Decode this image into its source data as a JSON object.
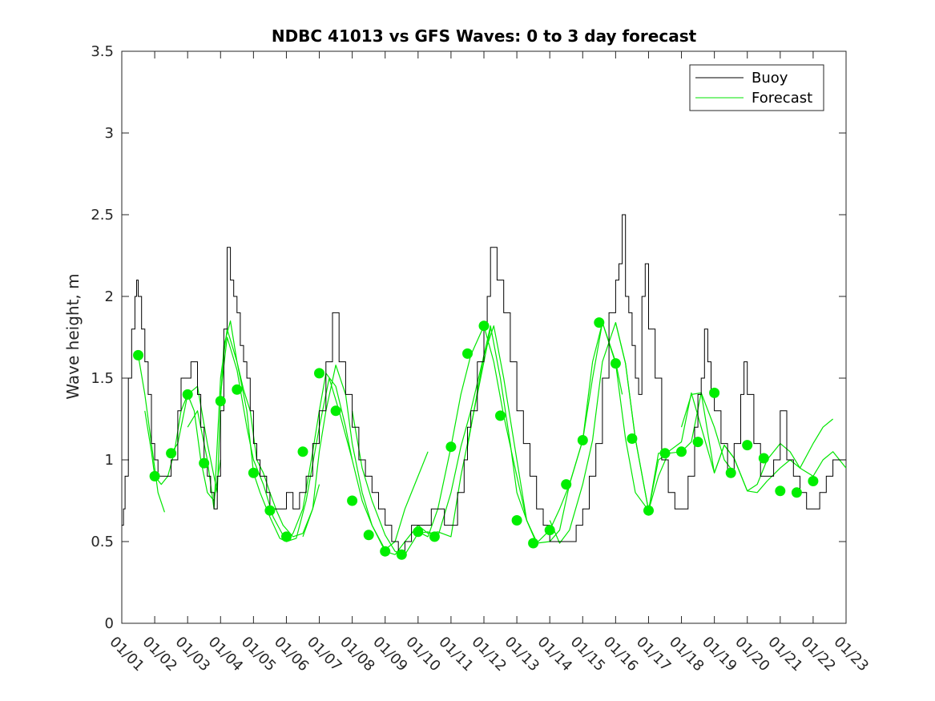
{
  "chart_data": {
    "type": "line",
    "title": "NDBC 41013 vs GFS Waves: 0 to 3 day forecast",
    "xlabel": "",
    "ylabel": "Wave height, m",
    "xlim": [
      0,
      22
    ],
    "ylim": [
      0,
      3.5
    ],
    "yticks": [
      0,
      0.5,
      1,
      1.5,
      2,
      2.5,
      3,
      3.5
    ],
    "ytick_labels": [
      "0",
      "0.5",
      "1",
      "1.5",
      "2",
      "2.5",
      "3",
      "3.5"
    ],
    "xticks": [
      0,
      1,
      2,
      3,
      4,
      5,
      6,
      7,
      8,
      9,
      10,
      11,
      12,
      13,
      14,
      15,
      16,
      17,
      18,
      19,
      20,
      21,
      22
    ],
    "xtick_labels": [
      "01/01",
      "01/02",
      "01/03",
      "01/04",
      "01/05",
      "01/06",
      "01/07",
      "01/08",
      "01/09",
      "01/10",
      "01/11",
      "01/12",
      "01/13",
      "01/14",
      "01/15",
      "01/16",
      "01/17",
      "01/18",
      "01/19",
      "01/20",
      "01/21",
      "01/22",
      "01/23"
    ],
    "legend": {
      "position": "top-right",
      "entries": [
        "Buoy",
        "Forecast"
      ]
    },
    "colors": {
      "buoy": "#000000",
      "forecast": "#00e600",
      "analysis_dot": "#00ee00"
    },
    "series": [
      {
        "name": "Buoy",
        "x": [
          0,
          0.05,
          0.1,
          0.2,
          0.3,
          0.4,
          0.45,
          0.5,
          0.55,
          0.6,
          0.7,
          0.8,
          0.9,
          1.0,
          1.1,
          1.2,
          1.3,
          1.5,
          1.7,
          1.8,
          2.0,
          2.1,
          2.2,
          2.3,
          2.4,
          2.5,
          2.6,
          2.7,
          2.8,
          2.9,
          3.0,
          3.1,
          3.2,
          3.3,
          3.4,
          3.5,
          3.6,
          3.7,
          3.8,
          3.9,
          4.0,
          4.1,
          4.2,
          4.3,
          4.4,
          4.5,
          4.6,
          4.8,
          5.0,
          5.2,
          5.4,
          5.6,
          5.8,
          6.0,
          6.2,
          6.4,
          6.6,
          6.8,
          7.0,
          7.2,
          7.4,
          7.6,
          7.8,
          8.0,
          8.2,
          8.4,
          8.6,
          8.8,
          9.0,
          9.2,
          9.4,
          9.6,
          9.8,
          10.0,
          10.2,
          10.4,
          10.5,
          10.6,
          10.8,
          11.0,
          11.1,
          11.2,
          11.4,
          11.6,
          11.8,
          12.0,
          12.2,
          12.4,
          12.6,
          12.8,
          13.0,
          13.2,
          13.4,
          13.6,
          13.8,
          14.0,
          14.2,
          14.4,
          14.6,
          14.8,
          15.0,
          15.1,
          15.2,
          15.3,
          15.4,
          15.5,
          15.6,
          15.7,
          15.8,
          15.9,
          16.0,
          16.2,
          16.4,
          16.6,
          16.8,
          17.0,
          17.2,
          17.4,
          17.5,
          17.6,
          17.7,
          17.8,
          17.9,
          18.0,
          18.2,
          18.4,
          18.6,
          18.8,
          18.9,
          19.0,
          19.2,
          19.4,
          19.6,
          19.8,
          20.0,
          20.2,
          20.4,
          20.6,
          20.8,
          21.0,
          21.2,
          21.4,
          21.6,
          21.8,
          22.0
        ],
        "y": [
          0.6,
          0.7,
          0.9,
          1.5,
          1.8,
          2.0,
          2.1,
          2.0,
          2.0,
          1.8,
          1.6,
          1.4,
          1.1,
          1.0,
          0.9,
          0.9,
          0.9,
          1.0,
          1.3,
          1.5,
          1.5,
          1.6,
          1.6,
          1.4,
          1.2,
          1.0,
          0.9,
          0.8,
          0.7,
          0.9,
          1.3,
          1.8,
          2.3,
          2.1,
          2.0,
          1.9,
          1.7,
          1.6,
          1.5,
          1.3,
          1.1,
          1.0,
          0.9,
          0.9,
          0.8,
          0.7,
          0.7,
          0.7,
          0.8,
          0.7,
          0.8,
          0.9,
          1.1,
          1.3,
          1.6,
          1.9,
          1.6,
          1.4,
          1.2,
          1.0,
          0.9,
          0.8,
          0.7,
          0.6,
          0.5,
          0.4,
          0.5,
          0.6,
          0.6,
          0.6,
          0.7,
          0.7,
          0.6,
          0.6,
          0.8,
          1.0,
          1.2,
          1.3,
          1.6,
          1.8,
          2.0,
          2.3,
          2.1,
          1.9,
          1.6,
          1.3,
          1.1,
          0.9,
          0.7,
          0.6,
          0.5,
          0.5,
          0.5,
          0.5,
          0.6,
          0.7,
          0.9,
          1.1,
          1.5,
          1.9,
          2.1,
          2.2,
          2.5,
          2.0,
          1.9,
          1.7,
          1.5,
          1.4,
          2.0,
          2.2,
          1.8,
          1.5,
          1.0,
          0.8,
          0.7,
          0.7,
          0.9,
          1.2,
          1.4,
          1.5,
          1.8,
          1.6,
          1.4,
          1.3,
          1.1,
          0.9,
          1.1,
          1.4,
          1.6,
          1.4,
          1.1,
          0.9,
          0.9,
          1.0,
          1.3,
          1.0,
          0.9,
          0.8,
          0.7,
          0.7,
          0.8,
          0.9,
          1.0,
          1.0,
          1.0
        ]
      },
      {
        "name": "Forecast",
        "runs": [
          {
            "x": [
              0.5,
              0.7,
              0.9,
              1.1,
              1.3
            ],
            "y": [
              1.64,
              1.4,
              1.1,
              0.8,
              0.68
            ]
          },
          {
            "x": [
              0.7,
              0.9,
              1.0,
              1.2,
              1.4,
              1.6,
              1.8,
              2.0,
              2.2,
              2.4,
              2.6,
              2.8,
              3.0
            ],
            "y": [
              1.3,
              1.05,
              0.9,
              0.85,
              0.9,
              1.05,
              1.3,
              1.4,
              1.3,
              1.0,
              0.8,
              0.75,
              1.0
            ]
          },
          {
            "x": [
              1.5,
              1.7,
              2.0,
              2.3,
              2.6,
              2.9,
              3.0,
              3.1,
              3.3,
              3.5,
              3.7,
              3.9,
              4.1,
              4.3,
              4.5,
              4.7,
              4.9,
              5.2,
              5.5,
              5.8,
              6.0
            ],
            "y": [
              1.04,
              1.1,
              1.4,
              1.45,
              1.1,
              0.8,
              1.36,
              1.7,
              1.85,
              1.6,
              1.43,
              1.3,
              1.0,
              0.92,
              0.8,
              0.69,
              0.6,
              0.53,
              0.55,
              0.7,
              0.85
            ]
          },
          {
            "x": [
              2.0,
              2.3,
              2.6,
              2.8,
              3.0,
              3.2,
              3.5,
              3.8,
              4.0,
              4.2,
              4.5,
              4.8,
              5.0,
              5.2,
              5.5,
              5.8,
              6.0,
              6.2,
              6.5,
              6.8,
              7.0
            ],
            "y": [
              1.2,
              1.3,
              1.0,
              0.7,
              1.5,
              1.8,
              1.6,
              1.3,
              0.92,
              0.8,
              0.65,
              0.52,
              0.5,
              0.55,
              0.7,
              1.05,
              1.3,
              1.53,
              1.45,
              1.2,
              1.0
            ]
          },
          {
            "x": [
              3.0,
              3.2,
              3.5,
              3.8,
              4.0,
              4.3,
              4.6,
              5.0,
              5.3,
              5.6,
              6.0,
              6.3,
              6.6,
              7.0,
              7.3,
              7.6,
              8.0,
              8.3,
              8.6,
              9.0,
              9.3
            ],
            "y": [
              1.4,
              1.75,
              1.55,
              1.2,
              1.0,
              0.85,
              0.65,
              0.5,
              0.52,
              0.75,
              1.2,
              1.5,
              1.3,
              1.0,
              0.75,
              0.6,
              0.45,
              0.5,
              0.7,
              0.9,
              1.05
            ]
          },
          {
            "x": [
              5.5,
              5.8,
              6.0,
              6.2,
              6.5,
              6.8,
              7.0,
              7.3,
              7.6,
              8.0,
              8.3,
              8.6,
              9.0,
              9.3,
              9.6,
              10.0,
              10.3,
              10.6,
              11.0,
              11.2
            ],
            "y": [
              0.53,
              0.7,
              1.05,
              1.3,
              1.58,
              1.4,
              1.1,
              0.8,
              0.6,
              0.44,
              0.42,
              0.5,
              0.6,
              0.55,
              0.56,
              0.53,
              0.9,
              1.2,
              1.6,
              1.8
            ]
          },
          {
            "x": [
              7.0,
              7.3,
              7.6,
              8.0,
              8.3,
              8.6,
              9.0,
              9.3,
              9.6,
              10.0,
              10.3,
              10.6,
              11.0,
              11.2,
              11.5,
              11.8,
              12.0,
              12.3,
              12.6
            ],
            "y": [
              1.3,
              0.95,
              0.75,
              0.54,
              0.44,
              0.42,
              0.55,
              0.56,
              0.53,
              0.8,
              1.08,
              1.3,
              1.64,
              1.82,
              1.5,
              1.1,
              0.8,
              0.63,
              0.5
            ]
          },
          {
            "x": [
              9.0,
              9.3,
              9.6,
              10.0,
              10.3,
              10.6,
              11.0,
              11.3,
              11.6,
              12.0,
              12.3,
              12.6,
              13.0,
              13.3,
              13.6,
              14.0,
              14.3,
              14.6,
              15.0,
              15.2
            ],
            "y": [
              0.56,
              0.53,
              0.7,
              1.08,
              1.4,
              1.64,
              1.82,
              1.6,
              1.27,
              0.9,
              0.63,
              0.49,
              0.57,
              0.7,
              0.85,
              1.12,
              1.5,
              1.84,
              1.6,
              1.4
            ]
          },
          {
            "x": [
              10.5,
              11.0,
              11.3,
              11.6,
              12.0,
              12.3,
              12.6,
              13.0,
              13.3,
              13.6,
              14.0,
              14.3,
              14.6,
              15.0,
              15.3,
              15.6,
              16.0,
              16.3,
              16.6
            ],
            "y": [
              1.08,
              1.64,
              1.82,
              1.5,
              1.0,
              0.63,
              0.49,
              0.5,
              0.57,
              0.85,
              1.12,
              1.6,
              1.84,
              1.59,
              1.13,
              0.8,
              0.69,
              1.0,
              1.04
            ]
          },
          {
            "x": [
              13.0,
              13.3,
              13.6,
              14.0,
              14.3,
              14.6,
              15.0,
              15.3,
              15.6,
              16.0,
              16.3,
              16.6,
              17.0,
              17.3,
              17.6,
              18.0,
              18.3,
              18.6
            ],
            "y": [
              0.63,
              0.49,
              0.57,
              0.85,
              1.12,
              1.6,
              1.84,
              1.59,
              1.13,
              0.69,
              0.9,
              1.04,
              1.05,
              1.11,
              1.41,
              1.2,
              1.0,
              0.92
            ]
          },
          {
            "x": [
              15.0,
              15.3,
              15.6,
              16.0,
              16.3,
              16.6,
              17.0,
              17.3,
              17.6,
              18.0,
              18.3,
              18.6,
              19.0,
              19.3,
              19.6,
              20.0,
              20.3,
              20.6,
              21.0,
              21.3,
              21.6,
              22.0
            ],
            "y": [
              1.84,
              1.59,
              1.13,
              0.69,
              1.04,
              1.05,
              1.11,
              1.41,
              1.2,
              0.92,
              1.09,
              1.01,
              0.81,
              0.8,
              0.87,
              0.95,
              1.0,
              0.95,
              0.9,
              1.0,
              1.05,
              0.95
            ]
          },
          {
            "x": [
              17.0,
              17.3,
              17.6,
              18.0,
              18.3,
              18.6,
              19.0,
              19.3,
              19.6,
              20.0,
              20.3,
              20.6,
              21.0,
              21.3,
              21.6
            ],
            "y": [
              1.2,
              1.4,
              1.41,
              0.92,
              1.09,
              1.01,
              0.81,
              0.85,
              1.0,
              1.1,
              1.05,
              0.95,
              1.1,
              1.2,
              1.25
            ]
          }
        ]
      },
      {
        "name": "Analysis points",
        "x": [
          0.5,
          1.0,
          1.5,
          2.0,
          2.5,
          3.0,
          3.5,
          4.0,
          4.5,
          5.0,
          5.5,
          6.0,
          6.5,
          7.0,
          7.5,
          8.0,
          8.5,
          9.0,
          9.5,
          10.0,
          10.5,
          11.0,
          11.5,
          12.0,
          12.5,
          13.0,
          13.5,
          14.0,
          14.5,
          15.0,
          15.5,
          16.0,
          16.5,
          17.0,
          17.5,
          18.0,
          18.5,
          19.0,
          19.5,
          20.0,
          20.5,
          21.0
        ],
        "y": [
          1.64,
          0.9,
          1.04,
          1.4,
          0.98,
          1.36,
          1.43,
          0.92,
          0.69,
          0.53,
          1.05,
          1.53,
          1.3,
          0.75,
          0.54,
          0.44,
          0.42,
          0.56,
          0.53,
          1.08,
          1.65,
          1.82,
          1.27,
          0.63,
          0.49,
          0.57,
          0.85,
          1.12,
          1.84,
          1.59,
          1.13,
          0.69,
          1.04,
          1.05,
          1.11,
          1.41,
          0.92,
          1.09,
          1.01,
          0.81,
          0.8,
          0.87
        ]
      }
    ]
  }
}
